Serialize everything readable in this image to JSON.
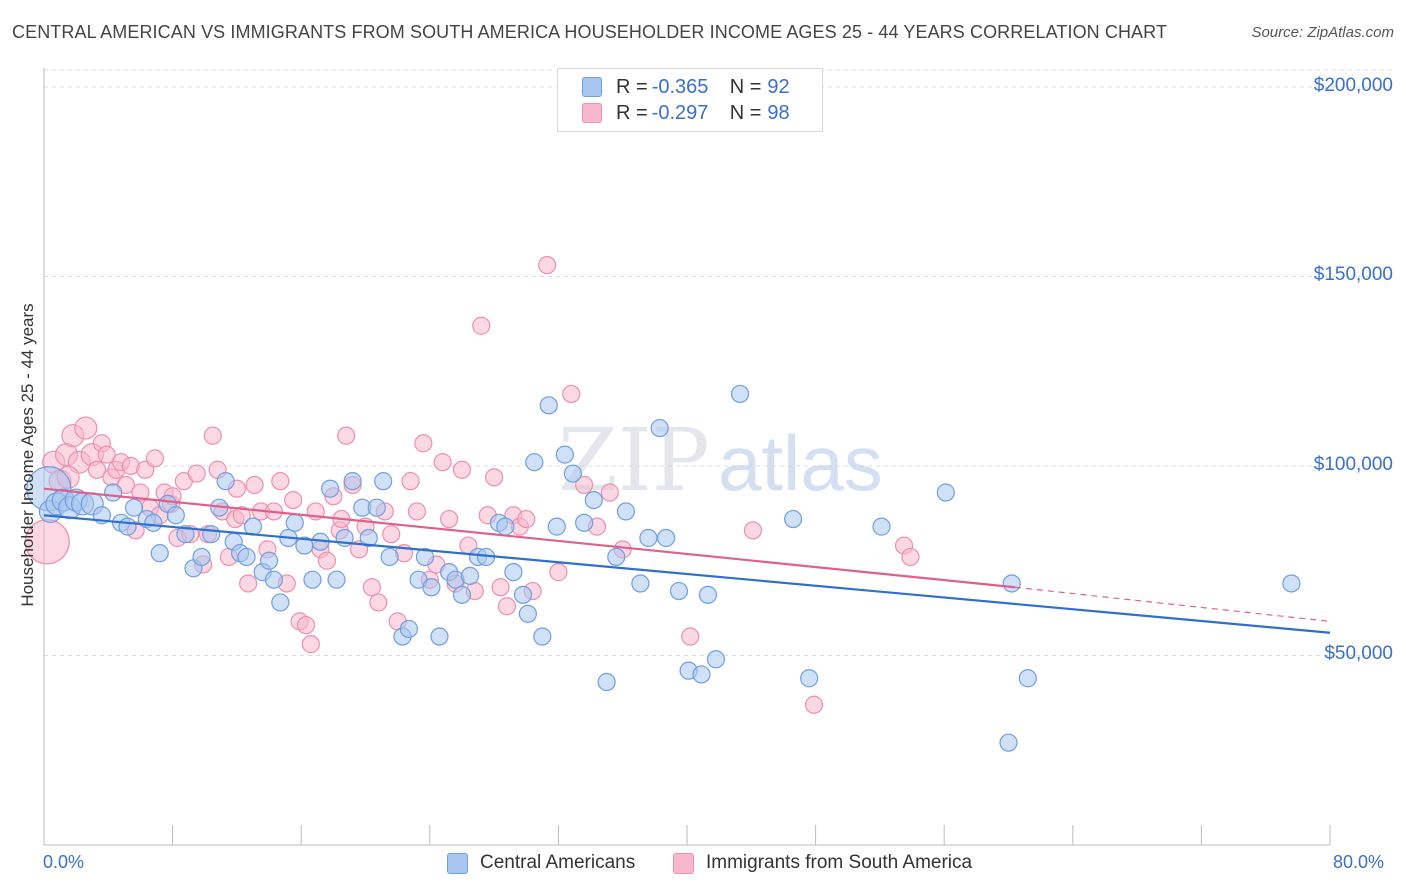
{
  "title": "CENTRAL AMERICAN VS IMMIGRANTS FROM SOUTH AMERICA HOUSEHOLDER INCOME AGES 25 - 44 YEARS CORRELATION CHART",
  "source": "Source: ZipAtlas.com",
  "watermark": {
    "zip": "ZIP",
    "atlas": "atlas"
  },
  "colors": {
    "blue_fill": "#a9c6f0",
    "blue_stroke": "#6f9fe0",
    "blue_line": "#2f6fce",
    "pink_fill": "#f7b8cc",
    "pink_stroke": "#ee8fad",
    "pink_line": "#e0608c",
    "axis_text": "#3a70c9",
    "grid": "#dcdcdc"
  },
  "legend_top": {
    "items": [
      {
        "r_label": "R = ",
        "r_value": "-0.365",
        "n_label": "N = ",
        "n_value": "92",
        "color": "blue"
      },
      {
        "r_label": "R = ",
        "r_value": "-0.297",
        "n_label": "N = ",
        "n_value": "98",
        "color": "pink"
      }
    ]
  },
  "legend_bottom": {
    "items": [
      "Central Americans",
      "Immigrants from South America"
    ]
  },
  "chart_data": {
    "type": "scatter",
    "title": "CENTRAL AMERICAN VS IMMIGRANTS FROM SOUTH AMERICA HOUSEHOLDER INCOME AGES 25 - 44 YEARS CORRELATION CHART",
    "xlabel": "",
    "ylabel": "Householder Income Ages 25 - 44 years",
    "xlim": [
      0,
      80
    ],
    "ylim": [
      0,
      205000
    ],
    "x_tick_labels": [
      "0.0%",
      "80.0%"
    ],
    "y_ticks": [
      50000,
      100000,
      150000,
      200000
    ],
    "y_tick_labels": [
      "$50,000",
      "$100,000",
      "$150,000",
      "$200,000"
    ],
    "grid": true,
    "legend_position": "top-center",
    "series": [
      {
        "name": "Central Americans",
        "r": -0.365,
        "n": 92,
        "trend": {
          "x": [
            0,
            80
          ],
          "y": [
            87000,
            56000
          ]
        },
        "points": [
          [
            0.3,
            94000
          ],
          [
            0.4,
            88000
          ],
          [
            0.8,
            90000
          ],
          [
            1.2,
            91000
          ],
          [
            1.6,
            89000
          ],
          [
            2.0,
            91000
          ],
          [
            2.4,
            90000
          ],
          [
            3.0,
            90000
          ],
          [
            3.6,
            87000
          ],
          [
            4.3,
            93000
          ],
          [
            4.8,
            85000
          ],
          [
            5.2,
            84000
          ],
          [
            5.6,
            89000
          ],
          [
            6.4,
            86000
          ],
          [
            6.8,
            85000
          ],
          [
            7.2,
            77000
          ],
          [
            7.7,
            90000
          ],
          [
            8.2,
            87000
          ],
          [
            8.8,
            82000
          ],
          [
            9.3,
            73000
          ],
          [
            9.8,
            76000
          ],
          [
            10.4,
            82000
          ],
          [
            10.9,
            89000
          ],
          [
            11.3,
            96000
          ],
          [
            11.8,
            80000
          ],
          [
            12.2,
            77000
          ],
          [
            12.6,
            76000
          ],
          [
            13.0,
            84000
          ],
          [
            13.6,
            72000
          ],
          [
            14.0,
            75000
          ],
          [
            14.3,
            70000
          ],
          [
            14.7,
            64000
          ],
          [
            15.2,
            81000
          ],
          [
            15.6,
            85000
          ],
          [
            16.2,
            79000
          ],
          [
            16.7,
            70000
          ],
          [
            17.2,
            80000
          ],
          [
            17.8,
            94000
          ],
          [
            18.2,
            70000
          ],
          [
            18.7,
            81000
          ],
          [
            19.2,
            96000
          ],
          [
            19.8,
            89000
          ],
          [
            20.2,
            81000
          ],
          [
            20.7,
            89000
          ],
          [
            21.1,
            96000
          ],
          [
            21.5,
            76000
          ],
          [
            22.3,
            55000
          ],
          [
            22.7,
            57000
          ],
          [
            23.3,
            70000
          ],
          [
            23.7,
            76000
          ],
          [
            24.1,
            68000
          ],
          [
            24.6,
            55000
          ],
          [
            25.2,
            72000
          ],
          [
            25.6,
            70000
          ],
          [
            26.0,
            66000
          ],
          [
            26.5,
            71000
          ],
          [
            27.0,
            76000
          ],
          [
            27.5,
            76000
          ],
          [
            28.3,
            85000
          ],
          [
            28.7,
            84000
          ],
          [
            29.2,
            72000
          ],
          [
            29.8,
            66000
          ],
          [
            30.1,
            61000
          ],
          [
            30.5,
            101000
          ],
          [
            31.0,
            55000
          ],
          [
            31.4,
            116000
          ],
          [
            31.9,
            84000
          ],
          [
            32.4,
            103000
          ],
          [
            32.9,
            98000
          ],
          [
            33.6,
            85000
          ],
          [
            34.2,
            91000
          ],
          [
            35.0,
            43000
          ],
          [
            35.6,
            76000
          ],
          [
            36.2,
            88000
          ],
          [
            37.1,
            69000
          ],
          [
            37.6,
            81000
          ],
          [
            38.3,
            110000
          ],
          [
            38.7,
            81000
          ],
          [
            39.5,
            67000
          ],
          [
            40.1,
            46000
          ],
          [
            40.9,
            45000
          ],
          [
            41.3,
            66000
          ],
          [
            41.8,
            49000
          ],
          [
            43.3,
            119000
          ],
          [
            46.6,
            86000
          ],
          [
            47.6,
            44000
          ],
          [
            52.1,
            84000
          ],
          [
            56.1,
            93000
          ],
          [
            60.0,
            27000
          ],
          [
            60.2,
            69000
          ],
          [
            61.2,
            44000
          ],
          [
            77.6,
            69000
          ]
        ]
      },
      {
        "name": "Immigrants from South America",
        "r": -0.297,
        "n": 98,
        "trend": {
          "x": [
            0,
            60.4
          ],
          "y": [
            94000,
            68000
          ],
          "dashed_x": [
            60.4,
            80
          ],
          "dashed_y": [
            68000,
            59000
          ]
        },
        "points": [
          [
            0.2,
            80000
          ],
          [
            0.6,
            101000
          ],
          [
            1.0,
            96000
          ],
          [
            1.4,
            103000
          ],
          [
            1.8,
            108000
          ],
          [
            2.2,
            101000
          ],
          [
            2.6,
            110000
          ],
          [
            3.0,
            103000
          ],
          [
            3.3,
            99000
          ],
          [
            3.6,
            106000
          ],
          [
            3.9,
            103000
          ],
          [
            4.2,
            97000
          ],
          [
            4.5,
            99000
          ],
          [
            4.8,
            101000
          ],
          [
            5.1,
            95000
          ],
          [
            5.4,
            100000
          ],
          [
            5.7,
            83000
          ],
          [
            6.0,
            93000
          ],
          [
            6.3,
            99000
          ],
          [
            6.6,
            89000
          ],
          [
            6.9,
            102000
          ],
          [
            7.2,
            87000
          ],
          [
            7.5,
            93000
          ],
          [
            7.9,
            90000
          ],
          [
            8.3,
            81000
          ],
          [
            8.7,
            96000
          ],
          [
            9.1,
            82000
          ],
          [
            9.5,
            98000
          ],
          [
            9.9,
            74000
          ],
          [
            10.2,
            82000
          ],
          [
            10.5,
            108000
          ],
          [
            10.8,
            99000
          ],
          [
            11.1,
            88000
          ],
          [
            11.5,
            76000
          ],
          [
            11.9,
            86000
          ],
          [
            12.3,
            87000
          ],
          [
            12.7,
            69000
          ],
          [
            13.1,
            95000
          ],
          [
            13.5,
            88000
          ],
          [
            13.9,
            78000
          ],
          [
            14.3,
            88000
          ],
          [
            14.7,
            96000
          ],
          [
            15.1,
            69000
          ],
          [
            15.5,
            91000
          ],
          [
            15.9,
            59000
          ],
          [
            16.3,
            58000
          ],
          [
            16.6,
            53000
          ],
          [
            16.9,
            88000
          ],
          [
            17.2,
            78000
          ],
          [
            17.6,
            75000
          ],
          [
            18.0,
            92000
          ],
          [
            18.4,
            83000
          ],
          [
            18.8,
            108000
          ],
          [
            19.2,
            95000
          ],
          [
            19.6,
            78000
          ],
          [
            20.0,
            84000
          ],
          [
            20.4,
            68000
          ],
          [
            20.8,
            64000
          ],
          [
            21.2,
            88000
          ],
          [
            21.6,
            82000
          ],
          [
            22.0,
            59000
          ],
          [
            22.4,
            77000
          ],
          [
            22.8,
            96000
          ],
          [
            23.2,
            88000
          ],
          [
            23.6,
            106000
          ],
          [
            24.0,
            70000
          ],
          [
            24.4,
            74000
          ],
          [
            24.8,
            101000
          ],
          [
            25.2,
            86000
          ],
          [
            25.6,
            69000
          ],
          [
            26.0,
            99000
          ],
          [
            26.4,
            79000
          ],
          [
            26.8,
            67000
          ],
          [
            27.2,
            137000
          ],
          [
            27.6,
            87000
          ],
          [
            28.0,
            97000
          ],
          [
            28.4,
            68000
          ],
          [
            28.8,
            63000
          ],
          [
            29.2,
            87000
          ],
          [
            29.6,
            84000
          ],
          [
            30.0,
            86000
          ],
          [
            30.4,
            67000
          ],
          [
            31.3,
            153000
          ],
          [
            32.0,
            72000
          ],
          [
            32.8,
            119000
          ],
          [
            33.6,
            95000
          ],
          [
            34.4,
            84000
          ],
          [
            35.2,
            93000
          ],
          [
            36.0,
            78000
          ],
          [
            40.2,
            55000
          ],
          [
            44.1,
            83000
          ],
          [
            47.9,
            37000
          ],
          [
            53.5,
            79000
          ],
          [
            53.9,
            76000
          ],
          [
            1.5,
            97000
          ],
          [
            8.0,
            92000
          ],
          [
            12.0,
            94000
          ],
          [
            18.5,
            86000
          ]
        ]
      }
    ]
  }
}
